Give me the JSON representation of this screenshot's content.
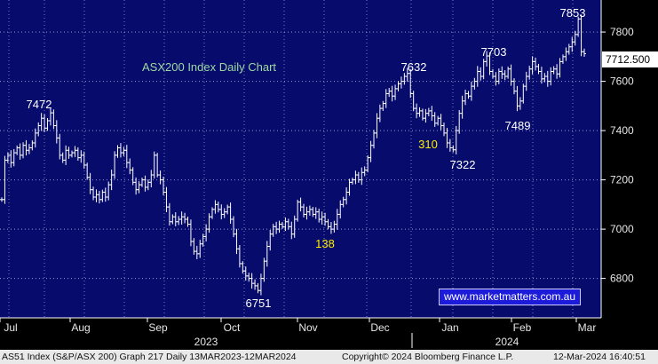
{
  "chart_data": {
    "type": "bar",
    "subtype": "ohlc-daily",
    "title": "ASX200 Index Daily Chart",
    "instrument": "AS51 Index (S&P/ASX 200)",
    "ylim": [
      6640,
      7930
    ],
    "y_ticks": [
      6800,
      7000,
      7200,
      7400,
      7600,
      7800
    ],
    "grid": true,
    "grid_style": "dotted",
    "months": [
      "Jul",
      "Aug",
      "Sep",
      "Oct",
      "Nov",
      "Dec",
      "Jan",
      "Feb",
      "Mar"
    ],
    "years": [
      "2023",
      "2024"
    ],
    "last_value": "7712.500",
    "closes": [
      7120,
      7280,
      7300,
      7270,
      7310,
      7330,
      7300,
      7340,
      7320,
      7330,
      7350,
      7390,
      7420,
      7450,
      7410,
      7440,
      7472,
      7420,
      7370,
      7300,
      7280,
      7320,
      7300,
      7310,
      7320,
      7290,
      7300,
      7260,
      7210,
      7160,
      7130,
      7140,
      7120,
      7150,
      7130,
      7180,
      7220,
      7300,
      7330,
      7310,
      7320,
      7270,
      7240,
      7190,
      7160,
      7180,
      7200,
      7170,
      7190,
      7220,
      7300,
      7220,
      7200,
      7150,
      7090,
      7030,
      7050,
      7030,
      7040,
      7050,
      7040,
      7020,
      6950,
      6910,
      6900,
      6940,
      6970,
      7000,
      7050,
      7080,
      7100,
      7080,
      7060,
      7070,
      7090,
      7040,
      6980,
      6920,
      6860,
      6830,
      6810,
      6800,
      6780,
      6770,
      6751,
      6800,
      6870,
      6930,
      6980,
      7010,
      7000,
      7020,
      7010,
      7030,
      7010,
      6980,
      7040,
      7110,
      7090,
      7060,
      7070,
      7080,
      7060,
      7070,
      7040,
      7050,
      7030,
      7010,
      7000,
      7020,
      7060,
      7100,
      7120,
      7150,
      7190,
      7200,
      7220,
      7200,
      7230,
      7240,
      7290,
      7340,
      7390,
      7450,
      7490,
      7510,
      7550,
      7560,
      7540,
      7570,
      7590,
      7600,
      7620,
      7632,
      7550,
      7490,
      7470,
      7480,
      7450,
      7470,
      7480,
      7460,
      7430,
      7450,
      7420,
      7390,
      7350,
      7330,
      7322,
      7400,
      7470,
      7520,
      7550,
      7540,
      7580,
      7600,
      7640,
      7620,
      7680,
      7703,
      7640,
      7620,
      7600,
      7640,
      7630,
      7620,
      7650,
      7600,
      7560,
      7500,
      7520,
      7580,
      7620,
      7650,
      7680,
      7660,
      7640,
      7610,
      7620,
      7600,
      7640,
      7650,
      7630,
      7680,
      7700,
      7720,
      7740,
      7760,
      7790,
      7853,
      7720,
      7712
    ]
  },
  "annotations": [
    {
      "text": "7472",
      "kind": "level"
    },
    {
      "text": "6751",
      "kind": "level"
    },
    {
      "text": "138",
      "kind": "move"
    },
    {
      "text": "7632",
      "kind": "level"
    },
    {
      "text": "310",
      "kind": "move"
    },
    {
      "text": "7322",
      "kind": "level"
    },
    {
      "text": "7703",
      "kind": "level"
    },
    {
      "text": "7489",
      "kind": "level"
    },
    {
      "text": "7853",
      "kind": "level"
    }
  ],
  "website": "www.marketmatters.com.au",
  "footer": {
    "left": "AS51 Index (S&P/ASX 200) Graph 217  Daily 13MAR2023-12MAR2024",
    "center": "Copyright© 2024 Bloomberg Finance L.P.",
    "right": "12-Mar-2024 16:40:51"
  },
  "colors": {
    "plot_bg": "#060b6c",
    "bar": "#ffffff",
    "grid": "#c8c8ff",
    "title": "#9dd9a0",
    "level_label": "#ffffff",
    "move_label": "#ffee00"
  }
}
